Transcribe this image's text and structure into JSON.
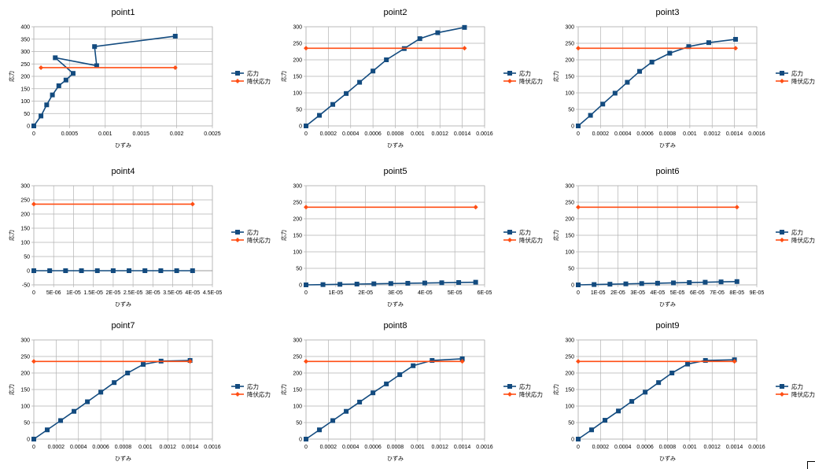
{
  "legend": {
    "series1": "応力",
    "series2": "降伏応力"
  },
  "colors": {
    "series1": "#134b7f",
    "series2": "#ff4e14",
    "grid": "#b3b3b3",
    "axis": "#b3b3b3"
  },
  "chart_data": [
    {
      "type": "scatter",
      "title": "point1",
      "xlabel": "ひずみ",
      "ylabel": "応力",
      "xlim": [
        0,
        0.0025
      ],
      "ylim": [
        0,
        400
      ],
      "xticks": [
        "0",
        "0.0005",
        "0.001",
        "0.0015",
        "0.002",
        "0.0025"
      ],
      "yticks": [
        "0",
        "50",
        "100",
        "150",
        "200",
        "250",
        "300",
        "350",
        "400"
      ],
      "series": [
        {
          "name": "応力",
          "x": [
            0,
            0.0001,
            0.00018,
            0.00026,
            0.00035,
            0.00045,
            0.00055,
            0.0003,
            0.00088,
            0.00085,
            0.00198
          ],
          "y": [
            0,
            40,
            85,
            125,
            162,
            185,
            212,
            275,
            243,
            320,
            362
          ]
        },
        {
          "name": "降伏応力",
          "x": [
            0.0001,
            0.00198
          ],
          "y": [
            235,
            235
          ]
        }
      ]
    },
    {
      "type": "scatter",
      "title": "point2",
      "xlabel": "ひずみ",
      "ylabel": "応力",
      "xlim": [
        0,
        0.0016
      ],
      "ylim": [
        0,
        300
      ],
      "xticks": [
        "0",
        "0.0002",
        "0.0004",
        "0.0006",
        "0.0008",
        "0.001",
        "0.0012",
        "0.0014",
        "0.0016"
      ],
      "yticks": [
        "0",
        "50",
        "100",
        "150",
        "200",
        "250",
        "300"
      ],
      "series": [
        {
          "name": "応力",
          "x": [
            0,
            0.00012,
            0.00024,
            0.00036,
            0.00048,
            0.0006,
            0.00072,
            0.00088,
            0.00102,
            0.00118,
            0.00142
          ],
          "y": [
            0,
            32,
            65,
            98,
            132,
            166,
            200,
            234,
            264,
            282,
            298
          ]
        },
        {
          "name": "降伏応力",
          "x": [
            0,
            0.00142
          ],
          "y": [
            235,
            235
          ]
        }
      ]
    },
    {
      "type": "scatter",
      "title": "point3",
      "xlabel": "ひずみ",
      "ylabel": "応力",
      "xlim": [
        0,
        0.0016
      ],
      "ylim": [
        0,
        300
      ],
      "xticks": [
        "0",
        "0.0002",
        "0.0004",
        "0.0006",
        "0.0008",
        "0.001",
        "0.0012",
        "0.0014",
        "0.0016"
      ],
      "yticks": [
        "0",
        "50",
        "100",
        "150",
        "200",
        "250",
        "300"
      ],
      "series": [
        {
          "name": "応力",
          "x": [
            0,
            0.00011,
            0.00022,
            0.00033,
            0.00044,
            0.00055,
            0.00066,
            0.00082,
            0.00099,
            0.00117,
            0.00141
          ],
          "y": [
            0,
            32,
            66,
            99,
            132,
            165,
            193,
            220,
            240,
            252,
            262
          ]
        },
        {
          "name": "降伏応力",
          "x": [
            0,
            0.00141
          ],
          "y": [
            235,
            235
          ]
        }
      ]
    },
    {
      "type": "scatter",
      "title": "point4",
      "xlabel": "ひずみ",
      "ylabel": "応力",
      "xlim": [
        0,
        4.5e-05
      ],
      "ylim": [
        -50,
        300
      ],
      "xticks": [
        "0",
        "5E-06",
        "1E-05",
        "1.5E-05",
        "2E-05",
        "2.5E-05",
        "3E-05",
        "3.5E-05",
        "4E-05",
        "4.5E-05"
      ],
      "yticks": [
        "-50",
        "0",
        "50",
        "100",
        "150",
        "200",
        "250",
        "300"
      ],
      "series": [
        {
          "name": "応力",
          "x": [
            0,
            4e-06,
            8e-06,
            1.2e-05,
            1.6e-05,
            2e-05,
            2.4e-05,
            2.8e-05,
            3.2e-05,
            3.6e-05,
            4e-05
          ],
          "y": [
            0,
            0,
            0,
            0,
            0,
            0,
            0,
            0,
            0,
            0,
            0
          ]
        },
        {
          "name": "降伏応力",
          "x": [
            0,
            4e-05
          ],
          "y": [
            235,
            235
          ]
        }
      ]
    },
    {
      "type": "scatter",
      "title": "point5",
      "xlabel": "ひずみ",
      "ylabel": "応力",
      "xlim": [
        0,
        6e-05
      ],
      "ylim": [
        0,
        300
      ],
      "xticks": [
        "0",
        "1E-05",
        "2E-05",
        "3E-05",
        "4E-05",
        "5E-05",
        "6E-05"
      ],
      "yticks": [
        "0",
        "50",
        "100",
        "150",
        "200",
        "250",
        "300"
      ],
      "series": [
        {
          "name": "応力",
          "x": [
            0,
            5.7e-06,
            1.14e-05,
            1.71e-05,
            2.28e-05,
            2.85e-05,
            3.42e-05,
            3.99e-05,
            4.56e-05,
            5.13e-05,
            5.7e-05
          ],
          "y": [
            0,
            0.8,
            1.6,
            2.4,
            3.2,
            4,
            4.8,
            5.6,
            6.4,
            7.2,
            8
          ]
        },
        {
          "name": "降伏応力",
          "x": [
            0,
            5.7e-05
          ],
          "y": [
            235,
            235
          ]
        }
      ]
    },
    {
      "type": "scatter",
      "title": "point6",
      "xlabel": "ひずみ",
      "ylabel": "応力",
      "xlim": [
        0,
        9e-05
      ],
      "ylim": [
        0,
        300
      ],
      "xticks": [
        "0",
        "1E-05",
        "2E-05",
        "3E-05",
        "4E-05",
        "5E-05",
        "6E-05",
        "7E-05",
        "8E-05",
        "9E-05"
      ],
      "yticks": [
        "0",
        "50",
        "100",
        "150",
        "200",
        "250",
        "300"
      ],
      "series": [
        {
          "name": "応力",
          "x": [
            0,
            8e-06,
            1.6e-05,
            2.4e-05,
            3.2e-05,
            4e-05,
            4.8e-05,
            5.6e-05,
            6.4e-05,
            7.2e-05,
            8e-05
          ],
          "y": [
            0,
            1,
            2,
            3,
            4,
            5,
            6,
            7,
            8,
            9,
            10
          ]
        },
        {
          "name": "降伏応力",
          "x": [
            0,
            8e-05
          ],
          "y": [
            235,
            235
          ]
        }
      ]
    },
    {
      "type": "scatter",
      "title": "point7",
      "xlabel": "ひずみ",
      "ylabel": "応力",
      "xlim": [
        0,
        0.0016
      ],
      "ylim": [
        0,
        300
      ],
      "xticks": [
        "0",
        "0.0002",
        "0.0004",
        "0.0006",
        "0.0008",
        "0.001",
        "0.0012",
        "0.0014",
        "0.0016"
      ],
      "yticks": [
        "0",
        "50",
        "100",
        "150",
        "200",
        "250",
        "300"
      ],
      "series": [
        {
          "name": "応力",
          "x": [
            0,
            0.00012,
            0.00024,
            0.00036,
            0.00048,
            0.0006,
            0.00072,
            0.00084,
            0.00098,
            0.00114,
            0.0014
          ],
          "y": [
            0,
            28,
            56,
            84,
            113,
            142,
            171,
            200,
            226,
            236,
            238
          ]
        },
        {
          "name": "降伏応力",
          "x": [
            0,
            0.0014
          ],
          "y": [
            235,
            235
          ]
        }
      ]
    },
    {
      "type": "scatter",
      "title": "point8",
      "xlabel": "ひずみ",
      "ylabel": "応力",
      "xlim": [
        0,
        0.0016
      ],
      "ylim": [
        0,
        300
      ],
      "xticks": [
        "0",
        "0.0002",
        "0.0004",
        "0.0006",
        "0.0008",
        "0.001",
        "0.0012",
        "0.0014",
        "0.0016"
      ],
      "yticks": [
        "0",
        "50",
        "100",
        "150",
        "200",
        "250",
        "300"
      ],
      "series": [
        {
          "name": "応力",
          "x": [
            0,
            0.00012,
            0.00024,
            0.00036,
            0.00048,
            0.0006,
            0.00072,
            0.00084,
            0.00096,
            0.00113,
            0.0014
          ],
          "y": [
            0,
            28,
            56,
            84,
            112,
            140,
            167,
            195,
            222,
            238,
            243
          ]
        },
        {
          "name": "降伏応力",
          "x": [
            0,
            0.0014
          ],
          "y": [
            235,
            235
          ]
        }
      ]
    },
    {
      "type": "scatter",
      "title": "point9",
      "xlabel": "ひずみ",
      "ylabel": "応力",
      "xlim": [
        0,
        0.0016
      ],
      "ylim": [
        0,
        300
      ],
      "xticks": [
        "0",
        "0.0002",
        "0.0004",
        "0.0006",
        "0.0008",
        "0.001",
        "0.0012",
        "0.0014",
        "0.0016"
      ],
      "yticks": [
        "0",
        "50",
        "100",
        "150",
        "200",
        "250",
        "300"
      ],
      "series": [
        {
          "name": "応力",
          "x": [
            0,
            0.00012,
            0.00024,
            0.00036,
            0.00048,
            0.0006,
            0.00072,
            0.00084,
            0.00098,
            0.00114,
            0.0014
          ],
          "y": [
            0,
            28,
            57,
            85,
            114,
            142,
            171,
            200,
            227,
            238,
            240
          ]
        },
        {
          "name": "降伏応力",
          "x": [
            0,
            0.0014
          ],
          "y": [
            235,
            235
          ]
        }
      ]
    }
  ]
}
